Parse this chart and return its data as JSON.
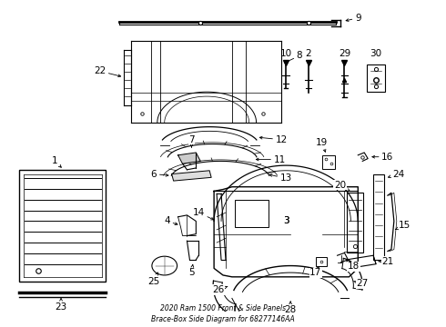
{
  "title": "2020 Ram 1500 Front & Side Panels\nBrace-Box Side Diagram for 68277146AA",
  "background_color": "#ffffff",
  "line_color": "#000000",
  "text_color": "#000000"
}
